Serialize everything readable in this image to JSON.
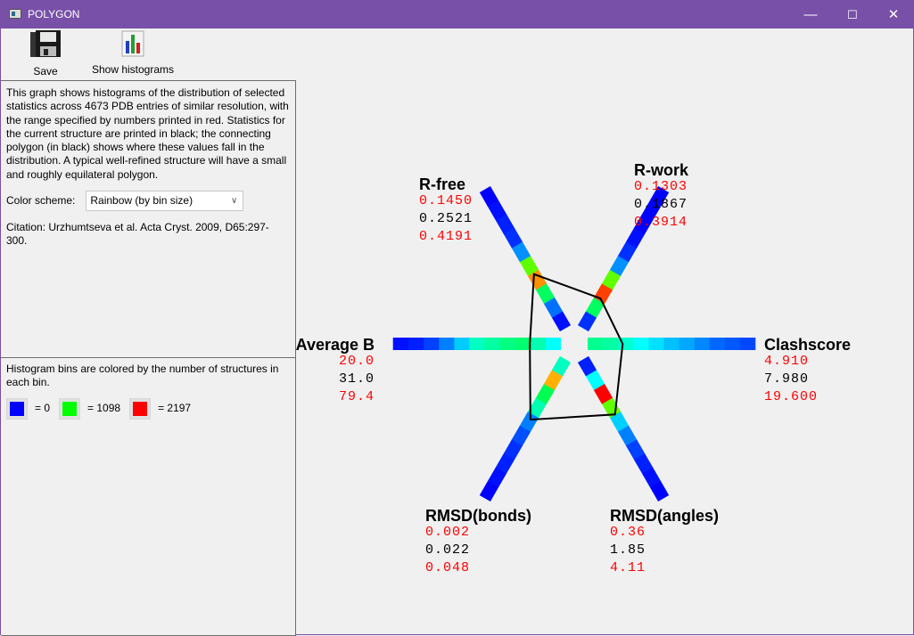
{
  "window": {
    "title": "POLYGON",
    "minimize": "—",
    "maximize": "☐",
    "close": "✕"
  },
  "toolbar": {
    "save_label": "Save",
    "histograms_label": "Show histograms"
  },
  "info": {
    "description": "This graph shows histograms of the distribution of selected statistics across 4673 PDB entries of similar resolution, with the range specified by numbers printed in red.  Statistics for the current structure are printed in black; the connecting polygon (in black) shows where these values fall in the distribution. A typical well-refined structure will have a small and roughly equilateral polygon.",
    "color_scheme_label": "Color scheme:",
    "color_scheme_value": "Rainbow (by bin size)",
    "citation": "Citation: Urzhumtseva et al. Acta Cryst. 2009, D65:297-300."
  },
  "legend": {
    "text": "Histogram bins are colored by the number of structures in each bin.",
    "items": [
      {
        "color": "#0000ff",
        "label": "= 0"
      },
      {
        "color": "#00ff00",
        "label": "= 1098"
      },
      {
        "color": "#ff0000",
        "label": "= 2197"
      }
    ]
  },
  "chart_data": {
    "type": "polygon",
    "polygon_color": "#000000",
    "range_color": "#ff0000",
    "axes": [
      {
        "name": "R-free",
        "min": "0.1450",
        "value": "0.2521",
        "max": "0.4191",
        "bins": [
          "#0010ff",
          "#0070ff",
          "#00ff60",
          "#ff9000",
          "#60ff00",
          "#0090ff",
          "#0030ff",
          "#0020ff",
          "#0010ff",
          "#0000ff"
        ]
      },
      {
        "name": "R-work",
        "min": "0.1303",
        "value": "0.1867",
        "max": "0.3914",
        "bins": [
          "#0030ff",
          "#00ff60",
          "#ff4000",
          "#60ff00",
          "#0090ff",
          "#0030ff",
          "#0010ff",
          "#0000ff",
          "#0000ff",
          "#0000ff"
        ]
      },
      {
        "name": "Clashscore",
        "min": "4.910",
        "value": "7.980",
        "max": "19.600",
        "bins": [
          "#00ff90",
          "#00ffa0",
          "#00ffd0",
          "#00ffff",
          "#00e0ff",
          "#00c0ff",
          "#00a8ff",
          "#0088ff",
          "#0068ff",
          "#0058ff",
          "#0048ff"
        ]
      },
      {
        "name": "RMSD(angles)",
        "min": "0.36",
        "value": "1.85",
        "max": "4.11",
        "bins": [
          "#0020ff",
          "#00ffff",
          "#ff0000",
          "#60ff00",
          "#00d0ff",
          "#0080ff",
          "#0040ff",
          "#0020ff",
          "#0010ff",
          "#0000ff"
        ]
      },
      {
        "name": "RMSD(bonds)",
        "min": "0.002",
        "value": "0.022",
        "max": "0.048",
        "bins": [
          "#00ffc0",
          "#ffb000",
          "#00ff50",
          "#00ffb0",
          "#0080ff",
          "#0050ff",
          "#0030ff",
          "#0020ff",
          "#0010ff",
          "#0000ff"
        ]
      },
      {
        "name": "Average B",
        "min": "20.0",
        "value": "31.0",
        "max": "79.4",
        "bins": [
          "#00ffff",
          "#00ffb0",
          "#00ff70",
          "#00ff80",
          "#00ffa0",
          "#00ffc0",
          "#00ccff",
          "#0080ff",
          "#0040ff",
          "#0020ff",
          "#0010ff"
        ]
      }
    ]
  }
}
